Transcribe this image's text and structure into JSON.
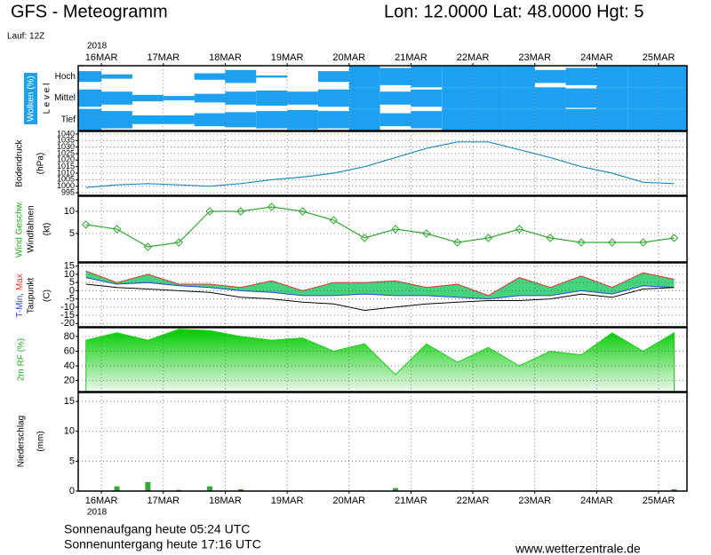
{
  "header": {
    "title": "GFS - Meteogramm",
    "location": "Lon: 12.0000 Lat: 48.0000 Hgt: 5",
    "run": "Lauf: 12Z",
    "year": "2018"
  },
  "footer": {
    "sunrise": "Sonnenaufgang heute 05:24 UTC",
    "sunset": "Sonnenuntergang heute 17:16 UTC",
    "url": "www.wetterzentrale.de"
  },
  "chart_data": [
    {
      "type": "heatmap",
      "ylabel": [
        "Wolken (%)",
        "L e v e l"
      ],
      "color": "#1ea0f0",
      "xlim": [
        -9,
        227
      ],
      "xticks": [
        {
          "value": 0,
          "label": "16MAR"
        },
        {
          "value": 24,
          "label": "17MAR"
        },
        {
          "value": 48,
          "label": "18MAR"
        },
        {
          "value": 72,
          "label": "19MAR"
        },
        {
          "value": 96,
          "label": "20MAR"
        },
        {
          "value": 120,
          "label": "21MAR"
        },
        {
          "value": 144,
          "label": "22MAR"
        },
        {
          "value": 168,
          "label": "23MAR"
        },
        {
          "value": 192,
          "label": "24MAR"
        },
        {
          "value": 216,
          "label": "25MAR"
        }
      ],
      "x": [
        -6,
        6,
        18,
        30,
        42,
        54,
        66,
        78,
        90,
        102,
        114,
        126,
        138,
        150,
        162,
        174,
        186,
        198,
        210,
        222
      ],
      "series": [
        {
          "name": "Hoch",
          "values": [
            50,
            20,
            0,
            0,
            30,
            60,
            10,
            0,
            50,
            100,
            80,
            100,
            100,
            100,
            100,
            60,
            80,
            100,
            100,
            100
          ]
        },
        {
          "name": "Mittel",
          "values": [
            80,
            60,
            30,
            20,
            40,
            60,
            70,
            60,
            80,
            100,
            60,
            80,
            100,
            100,
            100,
            100,
            90,
            100,
            100,
            100
          ]
        },
        {
          "name": "Tief",
          "values": [
            100,
            80,
            40,
            40,
            60,
            70,
            80,
            90,
            80,
            100,
            60,
            80,
            100,
            100,
            100,
            100,
            100,
            100,
            100,
            100
          ]
        }
      ]
    },
    {
      "type": "line",
      "ylabel": [
        "Bodendruck",
        "(hPa)"
      ],
      "color": "#1e8cc8",
      "xlim": [
        -9,
        227
      ],
      "ylim": [
        993,
        1042
      ],
      "yticks": [
        995,
        1000,
        1005,
        1010,
        1015,
        1020,
        1025,
        1030,
        1035,
        1040
      ],
      "x": [
        -6,
        6,
        18,
        30,
        42,
        54,
        66,
        78,
        90,
        102,
        114,
        126,
        138,
        150,
        162,
        174,
        186,
        198,
        210,
        222
      ],
      "values": [
        999,
        1001,
        1002,
        1001,
        1000,
        1002,
        1005,
        1007,
        1010,
        1015,
        1022,
        1029,
        1034,
        1034,
        1028,
        1022,
        1015,
        1010,
        1003,
        1002
      ]
    },
    {
      "type": "line",
      "ylabel": [
        "Wind Geschw.",
        "Windfahnen",
        "(kt)"
      ],
      "color": "#33aa33",
      "markers": true,
      "xlim": [
        -9,
        227
      ],
      "ylim": [
        -1.4,
        13.4
      ],
      "yticks": [
        5,
        10
      ],
      "x": [
        -6,
        6,
        18,
        30,
        42,
        54,
        66,
        78,
        90,
        102,
        114,
        126,
        138,
        150,
        162,
        174,
        186,
        198,
        210,
        222
      ],
      "values": [
        7,
        6,
        2,
        3,
        10,
        10,
        11,
        10,
        8,
        4,
        6,
        5,
        3,
        4,
        6,
        4,
        3,
        3,
        3,
        4
      ]
    },
    {
      "type": "range",
      "ylabel": [
        "T-Min,",
        "Max",
        "Taupunkt",
        "(C)"
      ],
      "fill_color": "#22cc66",
      "xlim": [
        -9,
        227
      ],
      "ylim": [
        -22,
        17
      ],
      "yticks": [
        15,
        10,
        5,
        0,
        -5,
        -10,
        -15,
        -20
      ],
      "x": [
        -6,
        6,
        18,
        30,
        42,
        54,
        66,
        78,
        90,
        102,
        114,
        126,
        138,
        150,
        162,
        174,
        186,
        198,
        210,
        222
      ],
      "series": [
        {
          "name": "Max",
          "color": "#e83030",
          "values": [
            12,
            5,
            10,
            4,
            4,
            2,
            6,
            0,
            5,
            5,
            6,
            2,
            4,
            -3,
            8,
            2,
            9,
            2,
            11,
            7
          ]
        },
        {
          "name": "T-Min",
          "color": "#3040e0",
          "values": [
            8,
            4,
            5,
            3,
            2,
            0,
            -1,
            -3,
            -3,
            -2,
            -3,
            -3,
            -4,
            -5,
            -3,
            -3,
            0,
            -2,
            3,
            2
          ]
        },
        {
          "name": "Taupunkt",
          "color": "#000000",
          "values": [
            4,
            2,
            1,
            0,
            -1,
            -4,
            -5,
            -7,
            -8,
            -12,
            -10,
            -8,
            -7,
            -6,
            -6,
            -5,
            -2,
            -4,
            1,
            2
          ]
        }
      ]
    },
    {
      "type": "area",
      "ylabel": [
        "2m RF (%)"
      ],
      "color": "#22cc22",
      "xlim": [
        -9,
        227
      ],
      "ylim": [
        5,
        92
      ],
      "yticks": [
        20,
        40,
        60,
        80
      ],
      "x": [
        -6,
        6,
        18,
        30,
        42,
        54,
        66,
        78,
        90,
        102,
        114,
        126,
        138,
        150,
        162,
        174,
        186,
        198,
        210,
        222
      ],
      "values": [
        75,
        85,
        75,
        90,
        88,
        80,
        75,
        78,
        60,
        70,
        28,
        70,
        45,
        65,
        40,
        60,
        55,
        85,
        60,
        85
      ]
    },
    {
      "type": "bar",
      "ylabel": [
        "Niederschlag",
        "(mm)"
      ],
      "color": "#33aa33",
      "xlim": [
        -9,
        227
      ],
      "ylim": [
        0,
        16.5
      ],
      "yticks": [
        0,
        5,
        10,
        15
      ],
      "xticks": [
        {
          "value": 0,
          "label": "16MAR"
        },
        {
          "value": 24,
          "label": "17MAR"
        },
        {
          "value": 48,
          "label": "18MAR"
        },
        {
          "value": 72,
          "label": "19MAR"
        },
        {
          "value": 96,
          "label": "20MAR"
        },
        {
          "value": 120,
          "label": "21MAR"
        },
        {
          "value": 144,
          "label": "22MAR"
        },
        {
          "value": 168,
          "label": "23MAR"
        },
        {
          "value": 192,
          "label": "24MAR"
        },
        {
          "value": 216,
          "label": "25MAR"
        }
      ],
      "x": [
        -6,
        6,
        18,
        30,
        42,
        54,
        66,
        78,
        90,
        102,
        114,
        126,
        138,
        150,
        162,
        174,
        186,
        198,
        210,
        222
      ],
      "values": [
        0,
        0.8,
        1.5,
        0.2,
        0.8,
        0.3,
        0,
        0,
        0,
        0,
        0.5,
        0,
        0,
        0,
        0,
        0,
        0,
        0,
        0,
        0.3
      ]
    }
  ]
}
